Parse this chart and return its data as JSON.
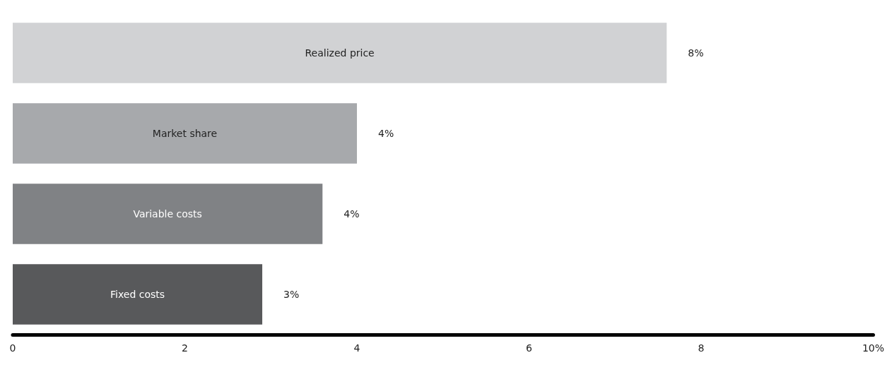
{
  "chart_data": {
    "type": "bar",
    "orientation": "horizontal",
    "categories": [
      "Realized price",
      "Market share",
      "Variable costs",
      "Fixed costs"
    ],
    "values": [
      7.6,
      4.0,
      3.6,
      2.9
    ],
    "colors": [
      "#d1d2d4",
      "#a7a9ac",
      "#808285",
      "#58595b"
    ],
    "value_labels": [
      "8%",
      "4%",
      "4%",
      "3%"
    ],
    "xlim": [
      0,
      10
    ],
    "xticks": [
      0,
      2,
      4,
      6,
      8,
      {
        "value": 10,
        "label": "10%"
      }
    ],
    "grid": false
  }
}
